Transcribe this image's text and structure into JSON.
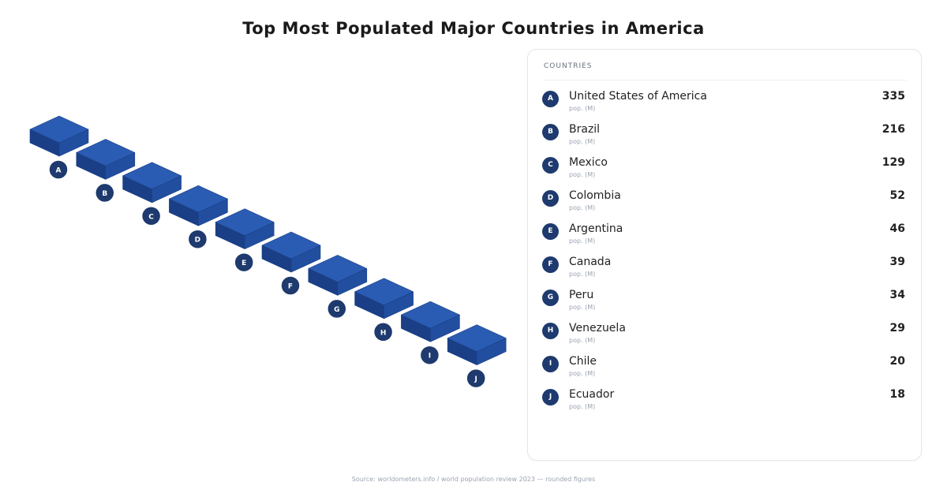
{
  "title": "Top Most Populated Major Countries in America",
  "panel": {
    "header": "COUNTRIES"
  },
  "footer": "Source: worldometers.info / world population review 2023 — rounded figures",
  "colors": {
    "block_top": "#2b5cb3",
    "block_left": "#1a3f86",
    "block_right": "#214e9e",
    "badge": "#1e3a6e"
  },
  "chart_data": {
    "type": "bar",
    "title": "Top Most Populated Major Countries in America",
    "categories": [
      "A",
      "B",
      "C",
      "D",
      "E",
      "F",
      "G",
      "H",
      "I",
      "J"
    ],
    "rows": [
      {
        "badge": "A",
        "name": "United States of America",
        "sub": "pop. (M)",
        "value": 335
      },
      {
        "badge": "B",
        "name": "Brazil",
        "sub": "pop. (M)",
        "value": 216
      },
      {
        "badge": "C",
        "name": "Mexico",
        "sub": "pop. (M)",
        "value": 129
      },
      {
        "badge": "D",
        "name": "Colombia",
        "sub": "pop. (M)",
        "value": 52
      },
      {
        "badge": "E",
        "name": "Argentina",
        "sub": "pop. (M)",
        "value": 46
      },
      {
        "badge": "F",
        "name": "Canada",
        "sub": "pop. (M)",
        "value": 39
      },
      {
        "badge": "G",
        "name": "Peru",
        "sub": "pop. (M)",
        "value": 34
      },
      {
        "badge": "H",
        "name": "Venezuela",
        "sub": "pop. (M)",
        "value": 29
      },
      {
        "badge": "I",
        "name": "Chile",
        "sub": "pop. (M)",
        "value": 20
      },
      {
        "badge": "J",
        "name": "Ecuador",
        "sub": "pop. (M)",
        "value": 18
      }
    ]
  }
}
